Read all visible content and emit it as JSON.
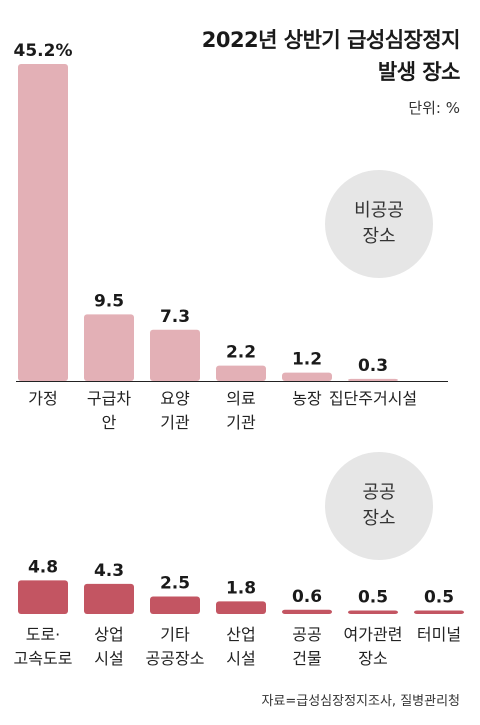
{
  "title_line1": "2022년 상반기 급성심장정지",
  "title_line2": "발생 장소",
  "unit_label": "단위: %",
  "source": "자료=급성심장정지조사, 질병관리청",
  "chart_data": [
    {
      "type": "bar",
      "group_label": "비공공\n장소",
      "color": "#e3b0b6",
      "categories": [
        "가정",
        "구급차 안",
        "요양 기관",
        "의료 기관",
        "농장",
        "집단주거시설"
      ],
      "category_lines": [
        [
          "가정"
        ],
        [
          "구급차",
          "안"
        ],
        [
          "요양",
          "기관"
        ],
        [
          "의료",
          "기관"
        ],
        [
          "농장"
        ],
        [
          "집단주거시설"
        ]
      ],
      "values": [
        45.2,
        9.5,
        7.3,
        2.2,
        1.2,
        0.3
      ],
      "value_labels": [
        "45.2%",
        "9.5",
        "7.3",
        "2.2",
        "1.2",
        "0.3"
      ]
    },
    {
      "type": "bar",
      "group_label": "공공\n장소",
      "color": "#c35562",
      "categories": [
        "도로· 고속도로",
        "상업 시설",
        "기타 공공장소",
        "산업 시설",
        "공공 건물",
        "여가관련 장소",
        "터미널"
      ],
      "category_lines": [
        [
          "도로·",
          "고속도로"
        ],
        [
          "상업",
          "시설"
        ],
        [
          "기타",
          "공공장소"
        ],
        [
          "산업",
          "시설"
        ],
        [
          "공공",
          "건물"
        ],
        [
          "여가관련",
          "장소"
        ],
        [
          "터미널"
        ]
      ],
      "values": [
        4.8,
        4.3,
        2.5,
        1.8,
        0.6,
        0.5,
        0.5
      ],
      "value_labels": [
        "4.8",
        "4.3",
        "2.5",
        "1.8",
        "0.6",
        "0.5",
        "0.5"
      ]
    }
  ]
}
